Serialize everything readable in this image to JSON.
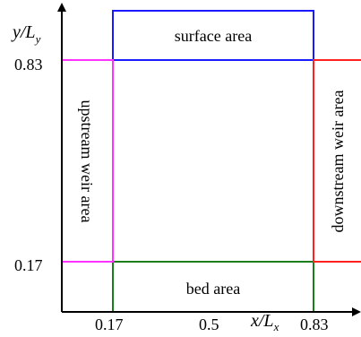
{
  "colors": {
    "surface": "#1a1aff",
    "upstream": "#ff33ff",
    "downstream": "#ff2020",
    "bed": "#1a7f1a",
    "axis": "#000000"
  },
  "axes": {
    "y_label_main": "y/L",
    "y_label_sub": "y",
    "x_label_main": "x/L",
    "x_label_sub": "x",
    "y_ticks": [
      "0.83",
      "0.17"
    ],
    "x_ticks": [
      "0.17",
      "0.5",
      "0.83"
    ]
  },
  "regions": {
    "surface": "surface area",
    "bed": "bed area",
    "upstream": "upstream weir area",
    "downstream": "downstream weir area"
  }
}
